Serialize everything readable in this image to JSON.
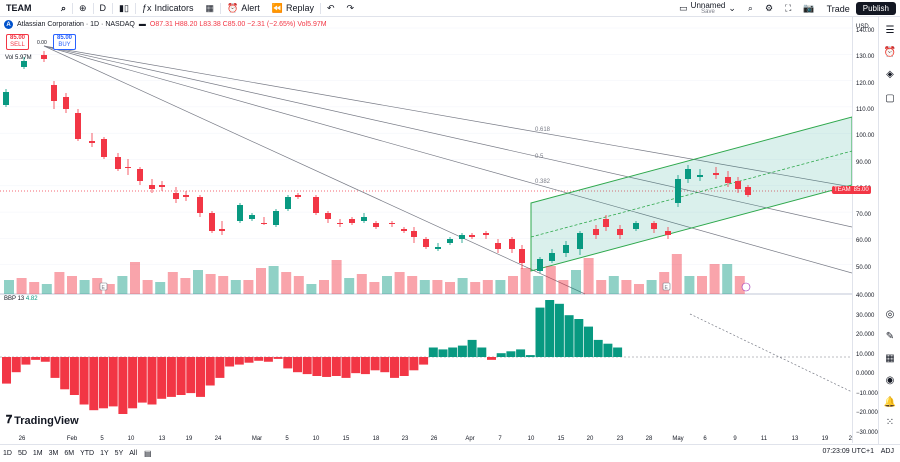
{
  "topbar": {
    "symbol": "TEAM",
    "interval": "D",
    "indicators_label": "Indicators",
    "alert_label": "Alert",
    "replay_label": "Replay",
    "layout_name": "Unnamed",
    "layout_status": "Save",
    "trade_label": "Trade",
    "publish_label": "Publish"
  },
  "legend": {
    "name": "Atlassian Corporation · 1D · NASDAQ",
    "ohlc": "O87.31 H88.20 L83.38 C85.00 −2.31 (−2.65%) Vol5.97M"
  },
  "quote": {
    "sell_price": "85.00",
    "sell_label": "SELL",
    "buy_price": "85.00",
    "buy_label": "BUY",
    "spread": "0.00",
    "vol_label": "Vol 5.97M"
  },
  "price_axis": {
    "currency": "USD",
    "labels": [
      "140.00",
      "130.00",
      "120.00",
      "110.00",
      "100.00",
      "90.00",
      "80.00",
      "70.00",
      "60.00",
      "50.00"
    ],
    "tag_symbol": "TEAM",
    "tag_price": "85.00"
  },
  "indicator": {
    "label": "BBP 13",
    "value": "4.82",
    "axis_labels": [
      "40.000",
      "30.000",
      "20.000",
      "10.000",
      "0.0000",
      "−10.000",
      "−20.000",
      "−30.000",
      "−40.000"
    ]
  },
  "fib": {
    "l1": "0.618",
    "l2": "0.5",
    "l3": "0.382"
  },
  "time_axis": [
    "26",
    "Feb",
    "5",
    "10",
    "13",
    "19",
    "24",
    "Mar",
    "5",
    "10",
    "15",
    "18",
    "23",
    "26",
    "Apr",
    "7",
    "10",
    "15",
    "20",
    "23",
    "28",
    "May",
    "6",
    "9",
    "11",
    "13",
    "19",
    "22",
    "26"
  ],
  "brand": "TradingView",
  "timebar": {
    "ranges": [
      "1D",
      "5D",
      "1M",
      "3M",
      "6M",
      "YTD",
      "1Y",
      "5Y",
      "All"
    ],
    "timestamp": "07:23:09 UTC+1",
    "adj": "ADJ"
  },
  "colors": {
    "up": "#089981",
    "down": "#f23645",
    "accent": "#2962ff"
  }
}
